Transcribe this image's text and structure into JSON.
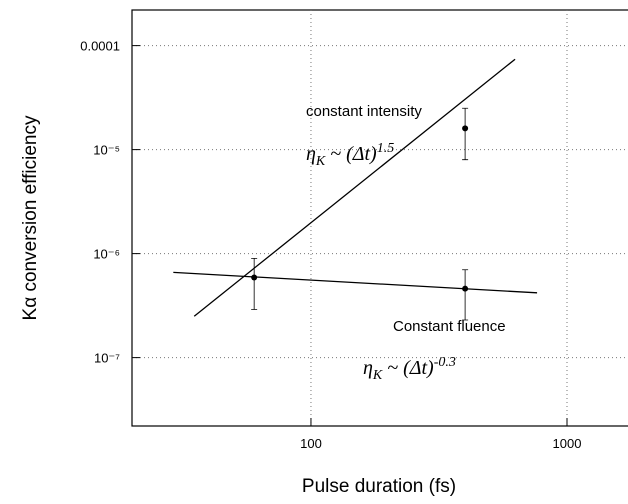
{
  "chart_data": {
    "type": "line",
    "xlabel": "Pulse duration (fs)",
    "ylabel": "Kα conversion efficiency",
    "xscale": "log",
    "yscale": "log",
    "grid": true,
    "xlim": [
      20,
      1700
    ],
    "ylim": [
      2.2e-08,
      0.00022
    ],
    "xticks": [
      100,
      1000
    ],
    "yticks": [
      {
        "value": 0.0001,
        "label": "0.0001"
      },
      {
        "value": 1e-05,
        "label": "10⁻⁵"
      },
      {
        "value": 1e-06,
        "label": "10⁻⁶"
      },
      {
        "value": 1e-07,
        "label": "10⁻⁷"
      }
    ],
    "series": [
      {
        "type": "line",
        "color": "#000000",
        "x": [
          35,
          627
        ],
        "values": [
          2.5e-07,
          7.4e-05
        ]
      },
      {
        "type": "line",
        "color": "#000000",
        "x": [
          29,
          764
        ],
        "values": [
          6.6e-07,
          4.2e-07
        ]
      },
      {
        "type": "errorbar",
        "color": "#000000",
        "x": [
          60,
          400
        ],
        "values": [
          5.9e-07,
          1.6e-05
        ],
        "err_low": [
          2.9e-07,
          8e-06
        ],
        "err_high": [
          9e-07,
          2.5e-05
        ]
      },
      {
        "type": "errorbar",
        "color": "#000000",
        "x": [
          400
        ],
        "values": [
          4.6e-07
        ],
        "err_low": [
          2.3e-07
        ],
        "err_high": [
          7e-07
        ]
      }
    ],
    "annotations": [
      {
        "text": "constant intensity"
      },
      {
        "base": "η",
        "sub": "K",
        "mid": " ~ (Δt)",
        "sup": "1.5"
      },
      {
        "text": "Constant fluence"
      },
      {
        "base": "η",
        "sub": "K",
        "mid": " ~ (Δt)",
        "sup": "-0.3"
      }
    ]
  }
}
